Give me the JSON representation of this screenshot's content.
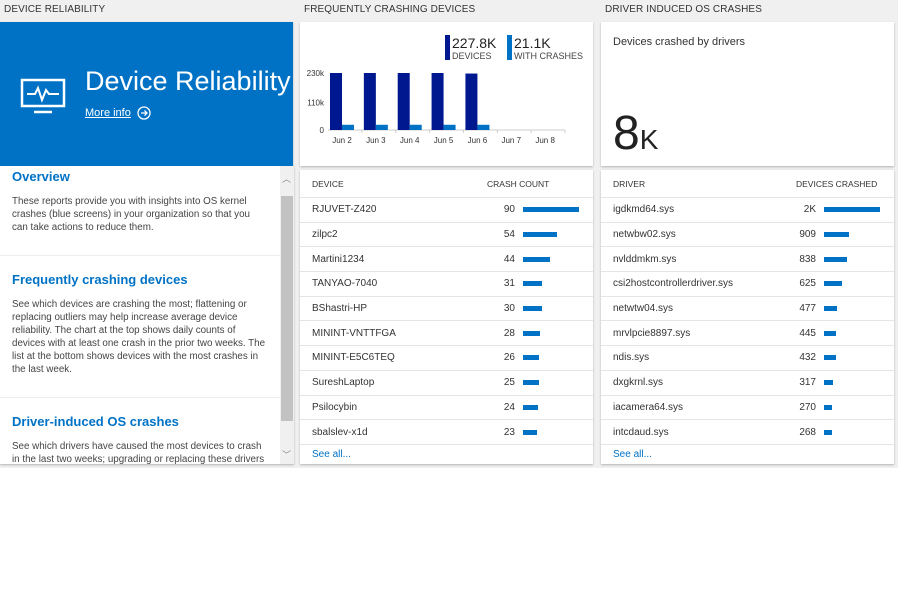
{
  "headers": {
    "left": "DEVICE RELIABILITY",
    "middle": "FREQUENTLY CRASHING DEVICES",
    "right": "DRIVER INDUCED OS CRASHES"
  },
  "hero": {
    "icon": "monitor-pulse-icon",
    "title": "Device Reliability",
    "more_info": "More info"
  },
  "info": [
    {
      "title": "Overview",
      "text": "These reports provide you with insights into OS kernel crashes (blue screens) in your organization so that you can take actions to reduce them."
    },
    {
      "title": "Frequently crashing devices",
      "text": "See which devices are crashing the most; flattening or replacing outliers may help increase average device reliability. The chart at the top shows daily counts of devices with at least one crash in the prior two weeks. The list at the bottom shows devices with the most crashes in the last week."
    },
    {
      "title": "Driver-induced OS crashes",
      "text": "See which drivers have caused the most devices to crash in the last two weeks; upgrading or replacing these drivers"
    }
  ],
  "chart_data": {
    "type": "bar",
    "categories": [
      "Jun 2",
      "Jun 3",
      "Jun 4",
      "Jun 5",
      "Jun 6",
      "Jun 7",
      "Jun 8"
    ],
    "series": [
      {
        "name": "DEVICES",
        "values": [
          230000,
          230000,
          230000,
          230000,
          227800,
          null,
          null
        ],
        "color": "#00188f"
      },
      {
        "name": "WITH CRASHES",
        "values": [
          21100,
          21100,
          21100,
          21100,
          21100,
          null,
          null
        ],
        "color": "#0072c6"
      }
    ],
    "legend": [
      {
        "value": "227.8K",
        "label": "DEVICES"
      },
      {
        "value": "21.1K",
        "label": "WITH CRASHES"
      }
    ],
    "yticks": [
      "230k",
      "110k",
      "0"
    ],
    "ylim": [
      0,
      230000
    ],
    "legend_position": "top-right"
  },
  "devices": {
    "col1": "DEVICE",
    "col2": "CRASH COUNT",
    "see_all": "See all...",
    "max": 90,
    "rows": [
      {
        "name": "RJUVET-Z420",
        "value": "90",
        "n": 90
      },
      {
        "name": "zilpc2",
        "value": "54",
        "n": 54
      },
      {
        "name": "Martini1234",
        "value": "44",
        "n": 44
      },
      {
        "name": "TANYAO-7040",
        "value": "31",
        "n": 31
      },
      {
        "name": "BShastri-HP",
        "value": "30",
        "n": 30
      },
      {
        "name": "MININT-VNTTFGA",
        "value": "28",
        "n": 28
      },
      {
        "name": "MININT-E5C6TEQ",
        "value": "26",
        "n": 26
      },
      {
        "name": "SureshLaptop",
        "value": "25",
        "n": 25
      },
      {
        "name": "Psilocybin",
        "value": "24",
        "n": 24
      },
      {
        "name": "sbalslev-x1d",
        "value": "23",
        "n": 23
      }
    ]
  },
  "driver_summary": {
    "label": "Devices crashed by drivers",
    "value": "8",
    "unit": "K"
  },
  "drivers": {
    "col1": "DRIVER",
    "col2": "DEVICES CRASHED",
    "see_all": "See all...",
    "max": 2000,
    "rows": [
      {
        "name": "igdkmd64.sys",
        "value": "2K",
        "n": 2000
      },
      {
        "name": "netwbw02.sys",
        "value": "909",
        "n": 909
      },
      {
        "name": "nvlddmkm.sys",
        "value": "838",
        "n": 838
      },
      {
        "name": "csi2hostcontrollerdriver.sys",
        "value": "625",
        "n": 625
      },
      {
        "name": "netwtw04.sys",
        "value": "477",
        "n": 477
      },
      {
        "name": "mrvlpcie8897.sys",
        "value": "445",
        "n": 445
      },
      {
        "name": "ndis.sys",
        "value": "432",
        "n": 432
      },
      {
        "name": "dxgkrnl.sys",
        "value": "317",
        "n": 317
      },
      {
        "name": "iacamera64.sys",
        "value": "270",
        "n": 270
      },
      {
        "name": "intcdaud.sys",
        "value": "268",
        "n": 268
      }
    ]
  },
  "colors": {
    "accent": "#0072c6",
    "dark": "#00188f"
  }
}
